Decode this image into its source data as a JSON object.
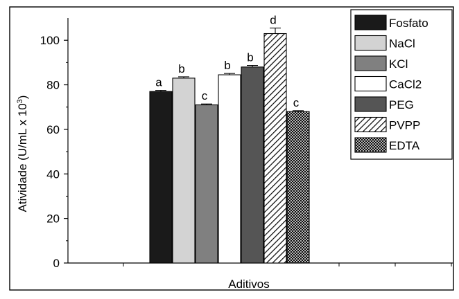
{
  "chart_data": {
    "type": "bar",
    "title": "",
    "xlabel": "Aditivos",
    "ylabel": {
      "main": "Atividade (U/mL x 10",
      "sup": "3",
      "close": ")"
    },
    "ylim": [
      0,
      110
    ],
    "yticks": [
      "0",
      "20",
      "40",
      "60",
      "80",
      "100"
    ],
    "grid": false,
    "legend_position": "top-right",
    "categories": [
      "Fosfato",
      "NaCl",
      "KCl",
      "CaCl2",
      "PEG",
      "PVPP",
      "EDTA"
    ],
    "series": [
      {
        "name": "Atividade",
        "values": [
          77,
          83,
          71,
          84.5,
          88,
          103,
          68
        ],
        "errors": [
          0.5,
          0.6,
          0.4,
          0.6,
          0.7,
          2.5,
          0.4
        ],
        "significance_labels": [
          "a",
          "b",
          "c",
          "b",
          "b",
          "d",
          "c"
        ]
      }
    ],
    "legend": [
      "Fosfato",
      "NaCl",
      "KCl",
      "CaCl2",
      "PEG",
      "PVPP",
      "EDTA"
    ],
    "fills": [
      {
        "color": "#1a1a1a",
        "pattern": "solid"
      },
      {
        "color": "#d3d3d3",
        "pattern": "solid"
      },
      {
        "color": "#808080",
        "pattern": "solid"
      },
      {
        "color": "#ffffff",
        "pattern": "solid"
      },
      {
        "color": "#555555",
        "pattern": "solid"
      },
      {
        "color": "#ffffff",
        "pattern": "diagonal-hatch"
      },
      {
        "color": "#ffffff",
        "pattern": "crosshatch"
      }
    ]
  }
}
